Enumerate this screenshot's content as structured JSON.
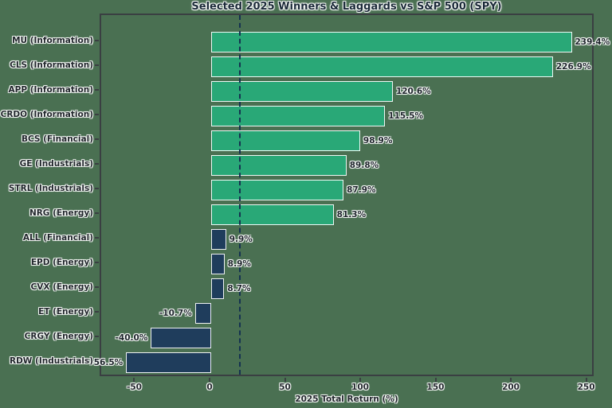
{
  "figure": {
    "background_color": "#4a7052",
    "positive_bar_color": "#29a877",
    "negative_bar_color": "#1f3d5c",
    "bar_edge_color": "#ffffff",
    "reference_line_color": "#143150"
  },
  "chart_data": {
    "type": "bar",
    "orientation": "horizontal",
    "title": "Selected 2025 Winners & Laggards vs S&P 500 (SPY)",
    "xlabel": "2025 Total Return (%)",
    "ylabel": "",
    "xlim": [
      -73,
      255
    ],
    "x_ticks": [
      -50,
      0,
      50,
      100,
      150,
      200,
      250
    ],
    "grid": false,
    "legend": false,
    "spy_reference_line_x": 18.4,
    "categories": [
      "MU (Information)",
      "CLS (Information)",
      "APP (Information)",
      "CRDO (Information)",
      "BCS (Financial)",
      "GE (Industrials)",
      "STRL (Industrials)",
      "NRG (Energy)",
      "ALL (Financial)",
      "EPD (Energy)",
      "CVX (Energy)",
      "ET (Energy)",
      "CRGY (Energy)",
      "RDW (Industrials)"
    ],
    "values": [
      239.4,
      226.9,
      120.6,
      115.5,
      98.9,
      89.8,
      87.9,
      81.3,
      9.9,
      8.9,
      8.7,
      -10.7,
      -40.0,
      -56.5
    ],
    "value_labels": [
      "239.4%",
      "226.9%",
      "120.6%",
      "115.5%",
      "98.9%",
      "89.8%",
      "87.9%",
      "81.3%",
      "9.9%",
      "8.9%",
      "8.7%",
      "-10.7%",
      "-40.0%",
      "-56.5%"
    ],
    "bar_colors": [
      "#29a877",
      "#29a877",
      "#29a877",
      "#29a877",
      "#29a877",
      "#29a877",
      "#29a877",
      "#29a877",
      "#1f3d5c",
      "#1f3d5c",
      "#1f3d5c",
      "#1f3d5c",
      "#1f3d5c",
      "#1f3d5c"
    ]
  }
}
